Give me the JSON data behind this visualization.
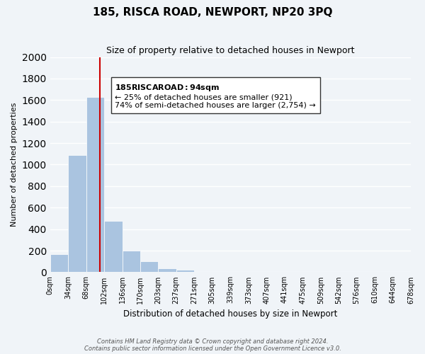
{
  "title": "185, RISCA ROAD, NEWPORT, NP20 3PQ",
  "subtitle": "Size of property relative to detached houses in Newport",
  "xlabel": "Distribution of detached houses by size in Newport",
  "ylabel": "Number of detached properties",
  "bin_labels": [
    "0sqm",
    "34sqm",
    "68sqm",
    "102sqm",
    "136sqm",
    "170sqm",
    "203sqm",
    "237sqm",
    "271sqm",
    "305sqm",
    "339sqm",
    "373sqm",
    "407sqm",
    "441sqm",
    "475sqm",
    "509sqm",
    "542sqm",
    "576sqm",
    "610sqm",
    "644sqm",
    "678sqm"
  ],
  "bar_values": [
    170,
    1090,
    1630,
    480,
    200,
    100,
    35,
    20,
    0,
    0,
    0,
    0,
    0,
    0,
    0,
    0,
    0,
    0,
    0,
    0
  ],
  "bar_color": "#aac4e0",
  "bar_edge_color": "#aac4e0",
  "vline_x": 94,
  "vline_color": "#cc0000",
  "ylim": [
    0,
    2000
  ],
  "yticks": [
    0,
    200,
    400,
    600,
    800,
    1000,
    1200,
    1400,
    1600,
    1800,
    2000
  ],
  "annotation_title": "185 RISCA ROAD: 94sqm",
  "annotation_line1": "← 25% of detached houses are smaller (921)",
  "annotation_line2": "74% of semi-detached houses are larger (2,754) →",
  "annotation_box_color": "#ffffff",
  "annotation_box_edge": "#333333",
  "footnote1": "Contains HM Land Registry data © Crown copyright and database right 2024.",
  "footnote2": "Contains public sector information licensed under the Open Government Licence v3.0.",
  "bg_color": "#f0f4f8",
  "plot_bg_color": "#f0f4f8",
  "grid_color": "#ffffff",
  "bin_edges": [
    0,
    34,
    68,
    102,
    136,
    170,
    203,
    237,
    271,
    305,
    339,
    373,
    407,
    441,
    475,
    509,
    542,
    576,
    610,
    644,
    678
  ]
}
